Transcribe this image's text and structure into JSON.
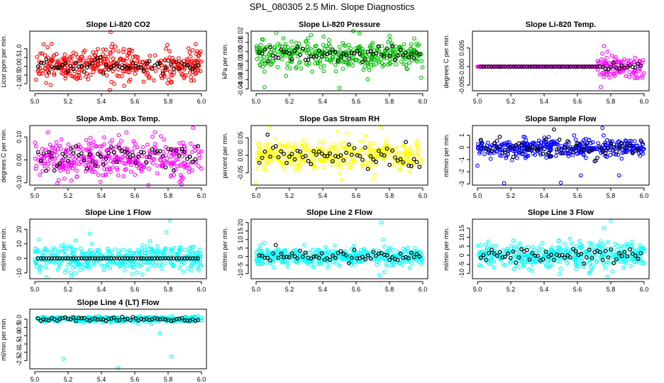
{
  "figure": {
    "title": "SPL_080305  2.5 Min. Slope Diagnostics"
  },
  "colors": {
    "black_points": "#000000",
    "axis": "#000000"
  },
  "chart_data": [
    {
      "type": "scatter",
      "title": "Slope Li-820 CO2",
      "ylabel": "Licor ppm per min.",
      "color": "#ff0000",
      "xlim": [
        4.97,
        6.03
      ],
      "ylim": [
        -1.4,
        2.0
      ],
      "xticks": [
        5.0,
        5.2,
        5.4,
        5.6,
        5.8,
        6.0
      ],
      "xticklabels": [
        "5.0",
        "5.2",
        "5.4",
        "5.6",
        "5.8",
        "6.0"
      ],
      "yticks": [
        -1.0,
        -0.5,
        0.0,
        0.5,
        1.0
      ],
      "yticklabels": [
        "-1.0",
        "-0.5",
        "0.0",
        "0.5",
        "1.0"
      ],
      "noise": {
        "mean": 0.05,
        "spread": 0.45,
        "black_spread": 0.2
      },
      "outliers": [
        [
          5.455,
          1.95
        ],
        [
          5.46,
          1.1
        ],
        [
          5.47,
          0.9
        ],
        [
          5.45,
          -1.35
        ],
        [
          5.46,
          -0.9
        ],
        [
          5.3,
          0.9
        ]
      ]
    },
    {
      "type": "scatter",
      "title": "Slope Li-820 Pressure",
      "ylabel": "kPa per min.",
      "color": "#00c000",
      "xlim": [
        4.97,
        6.03
      ],
      "ylim": [
        -0.042,
        0.022
      ],
      "xticks": [
        5.0,
        5.2,
        5.4,
        5.6,
        5.8,
        6.0
      ],
      "xticklabels": [
        "5.0",
        "5.2",
        "5.4",
        "5.6",
        "5.8",
        "6.0"
      ],
      "yticks": [
        -0.04,
        -0.03,
        -0.02,
        -0.01,
        0.0,
        0.01,
        0.02
      ],
      "yticklabels": [
        "-0.04",
        "-0.03",
        "-0.02",
        "-0.01",
        "0.00",
        "0.01",
        "0.02"
      ],
      "noise": {
        "mean": -0.003,
        "spread": 0.008,
        "black_spread": 0.004
      },
      "outliers": [
        [
          5.05,
          -0.038
        ],
        [
          5.5,
          -0.039
        ],
        [
          5.18,
          -0.026
        ],
        [
          5.99,
          -0.028
        ],
        [
          5.33,
          0.018
        ],
        [
          5.8,
          0.017
        ]
      ]
    },
    {
      "type": "scatter",
      "title": "Slope Li-820 Temp.",
      "ylabel": "degrees C per min.",
      "color": "#ff00ff",
      "xlim": [
        4.97,
        6.03
      ],
      "ylim": [
        -0.0065,
        0.0095
      ],
      "xticks": [
        5.0,
        5.2,
        5.4,
        5.6,
        5.8,
        6.0
      ],
      "xticklabels": [
        "5.0",
        "5.2",
        "5.4",
        "5.6",
        "5.8",
        "6.0"
      ],
      "yticks": [
        -0.005,
        0.0,
        0.005
      ],
      "yticklabels": [
        "-0.005",
        "0.000",
        "0.005"
      ],
      "noise": {
        "mean": 0.0,
        "spread": 0.0,
        "black_spread": 0.0
      },
      "burst": {
        "start": 5.72,
        "spread": 0.0015
      },
      "outliers": [
        [
          5.76,
          0.0055
        ],
        [
          5.75,
          0.0035
        ],
        [
          5.74,
          -0.0055
        ],
        [
          5.99,
          -0.003
        ],
        [
          5.78,
          0.004
        ]
      ]
    },
    {
      "type": "scatter",
      "title": "Slope Amb. Box Temp.",
      "ylabel": "degrees C per min.",
      "color": "#ff00ff",
      "xlim": [
        4.97,
        6.03
      ],
      "ylim": [
        -0.11,
        0.15
      ],
      "xticks": [
        5.0,
        5.2,
        5.4,
        5.6,
        5.8,
        6.0
      ],
      "xticklabels": [
        "5.0",
        "5.2",
        "5.4",
        "5.6",
        "5.8",
        "6.0"
      ],
      "yticks": [
        -0.1,
        0.0,
        0.1
      ],
      "yticklabels": [
        "-0.10",
        "0.00",
        "0.10"
      ],
      "noise": {
        "mean": 0.01,
        "spread": 0.04,
        "black_spread": 0.025
      },
      "outliers": [
        [
          5.55,
          0.12
        ],
        [
          5.72,
          0.12
        ],
        [
          5.95,
          0.14
        ],
        [
          5.88,
          -0.09
        ],
        [
          5.22,
          -0.09
        ],
        [
          5.08,
          0.12
        ]
      ]
    },
    {
      "type": "scatter",
      "title": "Slope Gas Stream RH",
      "ylabel": "percent per min.",
      "color": "#ffff00",
      "xlim": [
        4.97,
        6.03
      ],
      "ylim": [
        -0.085,
        0.085
      ],
      "xticks": [
        5.0,
        5.2,
        5.4,
        5.6,
        5.8,
        6.0
      ],
      "xticklabels": [
        "5.0",
        "5.2",
        "5.4",
        "5.6",
        "5.8",
        "6.0"
      ],
      "yticks": [
        -0.05,
        0.0,
        0.05
      ],
      "yticklabels": [
        "-0.05",
        "0.00",
        "0.05"
      ],
      "noise": {
        "mean": 0.0,
        "spread": 0.022,
        "black_spread": 0.018
      },
      "outliers": [
        [
          5.0,
          -0.078
        ],
        [
          5.08,
          0.078
        ],
        [
          5.75,
          0.078
        ],
        [
          5.7,
          -0.07
        ]
      ]
    },
    {
      "type": "scatter",
      "title": "Slope Sample Flow",
      "ylabel": "ml/min per min.",
      "color": "#0000ff",
      "xlim": [
        4.97,
        6.03
      ],
      "ylim": [
        -3.1,
        1.8
      ],
      "xticks": [
        5.0,
        5.2,
        5.4,
        5.6,
        5.8,
        6.0
      ],
      "xticklabels": [
        "5.0",
        "5.2",
        "5.4",
        "5.6",
        "5.8",
        "6.0"
      ],
      "yticks": [
        -3,
        -2,
        -1,
        0,
        1
      ],
      "yticklabels": [
        "-3",
        "-2",
        "-1",
        "0",
        "1"
      ],
      "noise": {
        "mean": -0.05,
        "spread": 0.35,
        "black_spread": 0.45
      },
      "outliers": [
        [
          5.75,
          1.6
        ],
        [
          5.16,
          -2.95
        ],
        [
          5.5,
          -2.9
        ],
        [
          5.62,
          -2.3
        ],
        [
          5.85,
          -2.3
        ],
        [
          5.0,
          -1.5
        ]
      ]
    },
    {
      "type": "scatter",
      "title": "Slope Line 1 Flow",
      "ylabel": "ml/min per min.",
      "color": "#00ffff",
      "xlim": [
        4.97,
        6.03
      ],
      "ylim": [
        -14,
        27
      ],
      "xticks": [
        5.0,
        5.2,
        5.4,
        5.6,
        5.8,
        6.0
      ],
      "xticklabels": [
        "5.0",
        "5.2",
        "5.4",
        "5.6",
        "5.8",
        "6.0"
      ],
      "yticks": [
        -10,
        0,
        10,
        20
      ],
      "yticklabels": [
        "-10",
        "0",
        "10",
        "20"
      ],
      "noise": {
        "mean": 0.0,
        "spread": 4.5,
        "black_spread": 0.0
      },
      "outliers": [
        [
          5.81,
          26
        ],
        [
          5.79,
          18
        ],
        [
          5.33,
          17
        ],
        [
          5.22,
          -12
        ],
        [
          5.07,
          -13
        ]
      ]
    },
    {
      "type": "scatter",
      "title": "Slope Line 2 Flow",
      "ylabel": "ml/min per min.",
      "color": "#00ffff",
      "xlim": [
        4.97,
        6.03
      ],
      "ylim": [
        -13,
        22
      ],
      "xticks": [
        5.0,
        5.2,
        5.4,
        5.6,
        5.8,
        6.0
      ],
      "xticklabels": [
        "5.0",
        "5.2",
        "5.4",
        "5.6",
        "5.8",
        "6.0"
      ],
      "yticks": [
        -10,
        -5,
        0,
        5,
        10,
        15,
        20
      ],
      "yticklabels": [
        "-10",
        "-5",
        "0",
        "5",
        "10",
        "15",
        "20"
      ],
      "noise": {
        "mean": 0.0,
        "spread": 2.5,
        "black_spread": 1.5
      },
      "outliers": [
        [
          5.75,
          20
        ],
        [
          5.74,
          -11
        ],
        [
          5.77,
          -9
        ],
        [
          5.76,
          10
        ],
        [
          5.05,
          8
        ]
      ]
    },
    {
      "type": "scatter",
      "title": "Slope Line 3 Flow",
      "ylabel": "ml/min per min.",
      "color": "#00ffff",
      "xlim": [
        4.97,
        6.03
      ],
      "ylim": [
        -13,
        20
      ],
      "xticks": [
        5.0,
        5.2,
        5.4,
        5.6,
        5.8,
        6.0
      ],
      "xticklabels": [
        "5.0",
        "5.2",
        "5.4",
        "5.6",
        "5.8",
        "6.0"
      ],
      "yticks": [
        -10,
        -5,
        0,
        5,
        10,
        15
      ],
      "yticklabels": [
        "-10",
        "-5",
        "0",
        "5",
        "10",
        "15"
      ],
      "noise": {
        "mean": 0.0,
        "spread": 3.5,
        "black_spread": 2.0
      },
      "outliers": [
        [
          5.8,
          19
        ],
        [
          5.78,
          -12
        ],
        [
          5.81,
          -9
        ],
        [
          5.76,
          15
        ],
        [
          5.6,
          -6
        ]
      ]
    },
    {
      "type": "scatter",
      "title": "Slope Line 4 (LT) Flow",
      "ylabel": "ml/min per min.",
      "color": "#00ffff",
      "xlim": [
        4.97,
        6.03
      ],
      "ylim": [
        -3.0,
        0.6
      ],
      "xticks": [
        5.0,
        5.2,
        5.4,
        5.6,
        5.8,
        6.0
      ],
      "xticklabels": [
        "5.0",
        "5.2",
        "5.4",
        "5.6",
        "5.8",
        "6.0"
      ],
      "yticks": [
        -2.5,
        -2.0,
        -1.5,
        -1.0,
        -0.5,
        0.0
      ],
      "yticklabels": [
        "-2.5",
        "-2.0",
        "-1.5",
        "-1.0",
        "-0.5",
        "0.0"
      ],
      "noise": {
        "mean": 0.0,
        "spread": 0.08,
        "black_spread": 0.06
      },
      "outliers": [
        [
          5.5,
          -2.95
        ],
        [
          5.17,
          -2.4
        ],
        [
          5.82,
          -2.25
        ],
        [
          5.75,
          -0.85
        ],
        [
          5.7,
          -0.3
        ]
      ]
    }
  ]
}
